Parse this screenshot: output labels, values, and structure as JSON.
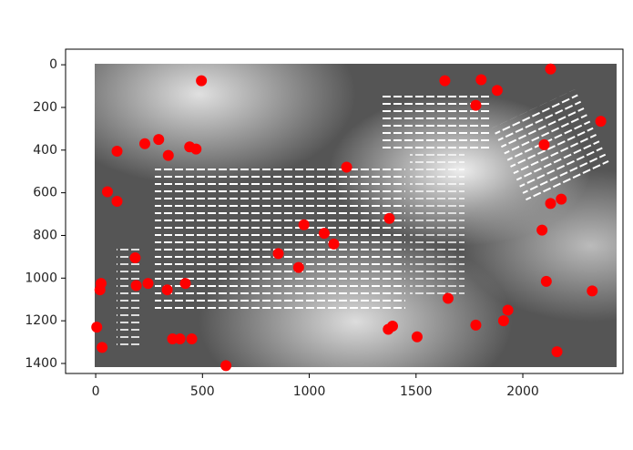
{
  "chart_data": {
    "type": "scatter",
    "color": "#ff0000",
    "xlim": [
      -141,
      2469
    ],
    "ylim": [
      1447,
      -73
    ],
    "xticks": [
      0,
      500,
      1000,
      1500,
      2000
    ],
    "yticks": [
      0,
      200,
      400,
      600,
      800,
      1000,
      1200,
      1400
    ],
    "x": [
      495,
      100,
      230,
      295,
      340,
      440,
      470,
      55,
      100,
      185,
      25,
      20,
      190,
      245,
      335,
      420,
      5,
      30,
      360,
      395,
      450,
      610,
      1175,
      1375,
      975,
      1070,
      1115,
      855,
      950,
      1370,
      1505,
      1650,
      1635,
      1805,
      1880,
      1780,
      2130,
      2100,
      2365,
      2130,
      2180,
      2090,
      2110,
      1930,
      1910,
      1780,
      2160,
      2325,
      1390
    ],
    "y": [
      75,
      405,
      370,
      350,
      425,
      385,
      395,
      595,
      640,
      905,
      1025,
      1055,
      1035,
      1025,
      1055,
      1025,
      1230,
      1325,
      1285,
      1285,
      1285,
      1410,
      480,
      720,
      750,
      790,
      840,
      885,
      950,
      1240,
      1275,
      1095,
      75,
      70,
      120,
      190,
      20,
      375,
      265,
      650,
      630,
      775,
      1015,
      1150,
      1200,
      1220,
      1345,
      1060,
      1225
    ]
  }
}
